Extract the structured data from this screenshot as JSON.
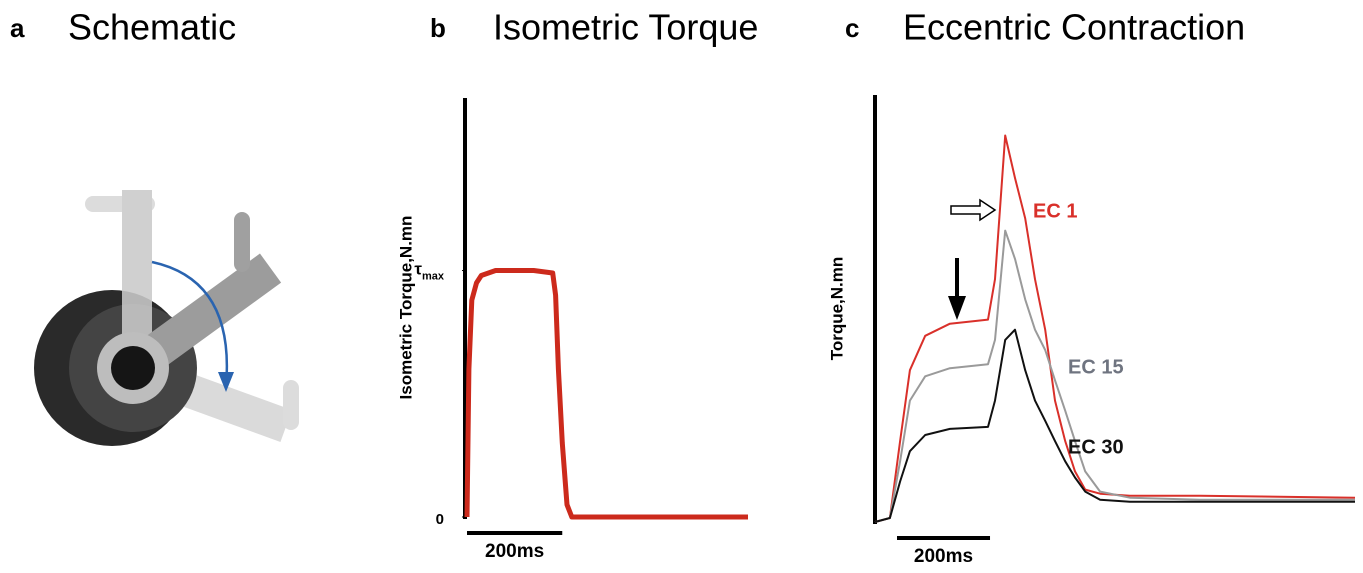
{
  "schematic": {
    "label": "a",
    "title": "Schematic"
  },
  "chart_data": [
    {
      "type": "line",
      "label": "b",
      "title": "Isometric Torque",
      "y_label": "Isometric Torque,N.mn",
      "x": [
        0,
        4,
        10,
        20,
        30,
        60,
        100,
        140,
        180,
        186,
        192,
        200,
        210,
        220,
        300,
        400,
        500,
        590
      ],
      "series": [
        {
          "color": "#cc2a1c",
          "values": [
            0,
            0.6,
            0.88,
            0.95,
            0.98,
            1.0,
            1.0,
            1.0,
            0.99,
            0.9,
            0.6,
            0.3,
            0.05,
            0,
            0,
            0,
            0,
            0
          ]
        }
      ],
      "xlim": [
        0,
        590
      ],
      "ylim": [
        0,
        1.7
      ],
      "yticks": [
        0,
        {
          "value": 1,
          "label": "τmax"
        }
      ],
      "scale_bar": {
        "value": 200,
        "label": "200ms"
      }
    },
    {
      "type": "line",
      "label": "c",
      "title": "Eccentric Contraction",
      "y_label": "Torque,N.mn",
      "x": [
        0,
        32,
        54,
        75,
        108,
        161,
        243,
        258,
        280,
        301,
        323,
        344,
        366,
        387,
        409,
        430,
        452,
        484,
        548,
        699,
        1032
      ],
      "series": [
        {
          "name": "EC 1",
          "color": "#d9302a",
          "values": [
            0,
            0.02,
            0.4,
            0.75,
            0.92,
            0.98,
            1.0,
            1.2,
            1.91,
            1.7,
            1.5,
            1.2,
            0.95,
            0.6,
            0.4,
            0.25,
            0.16,
            0.14,
            0.13,
            0.13,
            0.12
          ]
        },
        {
          "name": "EC 15",
          "color": "#9a9a9a",
          "values": [
            0,
            0.02,
            0.3,
            0.6,
            0.72,
            0.76,
            0.78,
            0.9,
            1.44,
            1.3,
            1.1,
            0.95,
            0.85,
            0.7,
            0.55,
            0.4,
            0.25,
            0.15,
            0.12,
            0.11,
            0.11
          ]
        },
        {
          "name": "EC 30",
          "color": "#111111",
          "values": [
            0,
            0.02,
            0.2,
            0.35,
            0.43,
            0.46,
            0.47,
            0.6,
            0.9,
            0.95,
            0.75,
            0.6,
            0.5,
            0.4,
            0.3,
            0.22,
            0.15,
            0.11,
            0.1,
            0.1,
            0.1
          ]
        }
      ],
      "xlim": [
        0,
        1032
      ],
      "ylim": [
        0,
        2.11
      ],
      "scale_bar": {
        "value": 200,
        "label": "200ms"
      }
    }
  ]
}
